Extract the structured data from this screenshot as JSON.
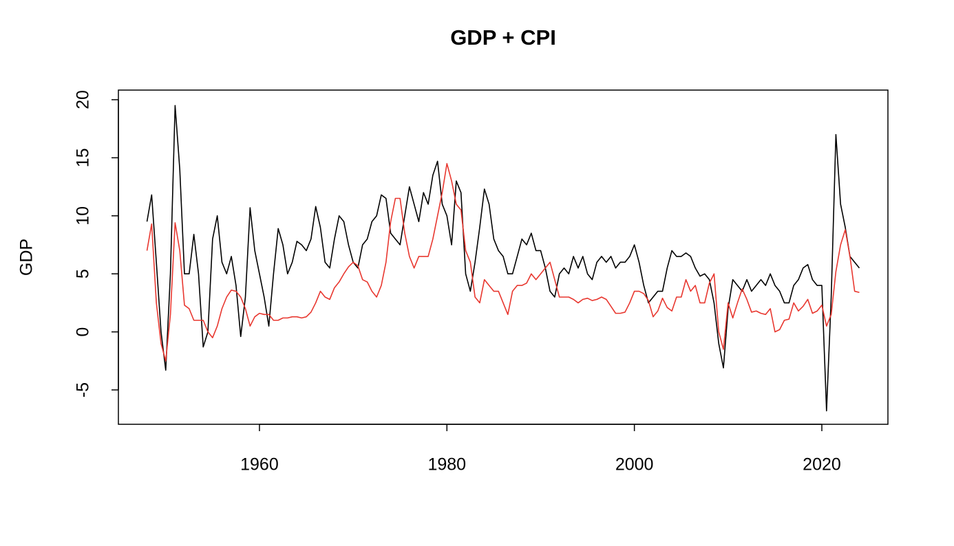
{
  "chart_data": {
    "type": "line",
    "title": "GDP + CPI",
    "ylabel": "GDP",
    "x": [
      1948,
      1948.5,
      1949,
      1949.5,
      1950,
      1950.5,
      1951,
      1951.5,
      1952,
      1952.5,
      1953,
      1953.5,
      1954,
      1954.5,
      1955,
      1955.5,
      1956,
      1956.5,
      1957,
      1957.5,
      1958,
      1958.5,
      1959,
      1959.5,
      1960,
      1960.5,
      1961,
      1961.5,
      1962,
      1962.5,
      1963,
      1963.5,
      1964,
      1964.5,
      1965,
      1965.5,
      1966,
      1966.5,
      1967,
      1967.5,
      1968,
      1968.5,
      1969,
      1969.5,
      1970,
      1970.5,
      1971,
      1971.5,
      1972,
      1972.5,
      1973,
      1973.5,
      1974,
      1974.5,
      1975,
      1975.5,
      1976,
      1976.5,
      1977,
      1977.5,
      1978,
      1978.5,
      1979,
      1979.5,
      1980,
      1980.5,
      1981,
      1981.5,
      1982,
      1982.5,
      1983,
      1983.5,
      1984,
      1984.5,
      1985,
      1985.5,
      1986,
      1986.5,
      1987,
      1987.5,
      1988,
      1988.5,
      1989,
      1989.5,
      1990,
      1990.5,
      1991,
      1991.5,
      1992,
      1992.5,
      1993,
      1993.5,
      1994,
      1994.5,
      1995,
      1995.5,
      1996,
      1996.5,
      1997,
      1997.5,
      1998,
      1998.5,
      1999,
      1999.5,
      2000,
      2000.5,
      2001,
      2001.5,
      2002,
      2002.5,
      2003,
      2003.5,
      2004,
      2004.5,
      2005,
      2005.5,
      2006,
      2006.5,
      2007,
      2007.5,
      2008,
      2008.5,
      2009,
      2009.5,
      2010,
      2010.5,
      2011,
      2011.5,
      2012,
      2012.5,
      2013,
      2013.5,
      2014,
      2014.5,
      2015,
      2015.5,
      2016,
      2016.5,
      2017,
      2017.5,
      2018,
      2018.5,
      2019,
      2019.5,
      2020,
      2020.5,
      2021,
      2021.5,
      2022,
      2022.5,
      2023,
      2023.5,
      2024
    ],
    "series": [
      {
        "color": "#000000",
        "values": [
          9.5,
          11.8,
          6,
          0,
          -3.3,
          5,
          19.5,
          14,
          5,
          5,
          8.4,
          5,
          -1.3,
          0,
          8,
          10,
          6,
          5,
          6.5,
          4,
          -0.4,
          3,
          10.7,
          7,
          5,
          3,
          0.5,
          5,
          8.9,
          7.5,
          5,
          6,
          7.8,
          7.5,
          7,
          8,
          10.8,
          9,
          6,
          5.5,
          8,
          10,
          9.5,
          7.5,
          6,
          5.5,
          7.5,
          8,
          9.5,
          10,
          11.8,
          11.5,
          8.5,
          8,
          7.5,
          10,
          12.5,
          11,
          9.5,
          12,
          11,
          13.5,
          14.7,
          11,
          10,
          7.5,
          13,
          12,
          5,
          3.5,
          6,
          9,
          12.3,
          11,
          8,
          7,
          6.5,
          5,
          5,
          6.5,
          8,
          7.5,
          8.5,
          7,
          7,
          5.5,
          3.5,
          3,
          5,
          5.5,
          5,
          6.5,
          5.5,
          6.5,
          5,
          4.5,
          6,
          6.5,
          6,
          6.5,
          5.5,
          6,
          6,
          6.5,
          7.5,
          6,
          4,
          2.5,
          3,
          3.5,
          3.5,
          5.5,
          7,
          6.5,
          6.5,
          6.8,
          6.5,
          5.5,
          4.8,
          5,
          4.5,
          2.5,
          -1,
          -3.1,
          2,
          4.5,
          4,
          3.5,
          4.5,
          3.5,
          4,
          4.5,
          4,
          5,
          4,
          3.5,
          2.5,
          2.5,
          4,
          4.5,
          5.5,
          5.8,
          4.5,
          4,
          4,
          -6.8,
          3,
          17,
          11,
          9,
          6.5,
          6,
          5.5
        ]
      },
      {
        "color": "#e8372f",
        "values": [
          7,
          9.3,
          2.5,
          -1,
          -2.5,
          1.5,
          9.4,
          7,
          2.3,
          2,
          1,
          1,
          1,
          0,
          -0.5,
          0.5,
          2,
          3,
          3.6,
          3.5,
          3,
          2,
          0.5,
          1.3,
          1.6,
          1.5,
          1.5,
          1,
          1,
          1.2,
          1.2,
          1.3,
          1.3,
          1.2,
          1.3,
          1.7,
          2.5,
          3.5,
          3,
          2.8,
          3.8,
          4.3,
          5,
          5.6,
          6,
          5.7,
          4.5,
          4.3,
          3.5,
          3,
          4,
          6,
          9.5,
          11.5,
          11.5,
          8.5,
          6.5,
          5.5,
          6.5,
          6.5,
          6.5,
          8,
          10,
          12,
          14.5,
          13,
          11,
          10.5,
          7,
          6,
          3,
          2.5,
          4.5,
          4,
          3.5,
          3.5,
          2.5,
          1.5,
          3.5,
          4,
          4,
          4.2,
          5,
          4.5,
          5,
          5.5,
          6,
          4.5,
          3,
          3,
          3,
          2.8,
          2.5,
          2.8,
          2.9,
          2.7,
          2.8,
          3,
          2.8,
          2.2,
          1.6,
          1.6,
          1.7,
          2.5,
          3.5,
          3.5,
          3.3,
          2.7,
          1.3,
          1.8,
          2.9,
          2.1,
          1.8,
          3,
          3,
          4.5,
          3.5,
          4,
          2.5,
          2.5,
          4.2,
          5,
          0,
          -1.5,
          2.5,
          1.2,
          2.5,
          3.7,
          2.8,
          1.7,
          1.8,
          1.6,
          1.5,
          2,
          0,
          0.2,
          1,
          1.1,
          2.5,
          1.8,
          2.2,
          2.8,
          1.6,
          1.8,
          2.3,
          0.5,
          1.5,
          5.2,
          7.5,
          8.8,
          6.5,
          3.5,
          3.4
        ]
      }
    ],
    "xlim": [
      1944.95,
      2027.05
    ],
    "ylim": [
      -7.96,
      20.83
    ],
    "xticks": [
      1960,
      1980,
      2000,
      2020
    ],
    "yticks": [
      -5,
      0,
      5,
      10,
      15,
      20
    ],
    "grid": false
  }
}
